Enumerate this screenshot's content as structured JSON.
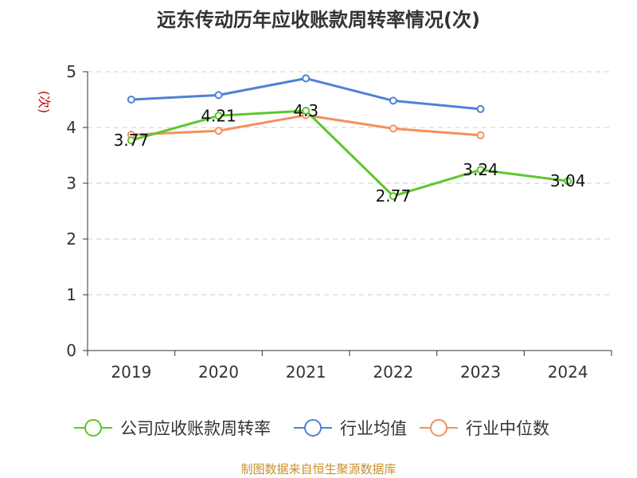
{
  "chart_data": {
    "type": "line",
    "title": "远东传动历年应收账款周转率情况(次)",
    "ylabel": "(次)",
    "categories": [
      "2019",
      "2020",
      "2021",
      "2022",
      "2023",
      "2024"
    ],
    "ylim": [
      0,
      5
    ],
    "yticks": [
      "0",
      "1",
      "2",
      "3",
      "4",
      "5"
    ],
    "grid": true,
    "legend_position": "bottom",
    "series": [
      {
        "name": "公司应收账款周转率",
        "color": "#5cc72e",
        "values": [
          3.77,
          4.21,
          4.3,
          2.77,
          3.24,
          3.04
        ],
        "labels": [
          "3.77",
          "4.21",
          "4.3",
          "2.77",
          "3.24",
          "3.04"
        ]
      },
      {
        "name": "行业均值",
        "color": "#4f81d6",
        "values": [
          4.5,
          4.58,
          4.88,
          4.48,
          4.33,
          null
        ]
      },
      {
        "name": "行业中位数",
        "color": "#f4905c",
        "values": [
          3.87,
          3.94,
          4.22,
          3.98,
          3.86,
          null
        ]
      }
    ]
  },
  "footer": {
    "source": "制图数据来自恒生聚源数据库"
  }
}
